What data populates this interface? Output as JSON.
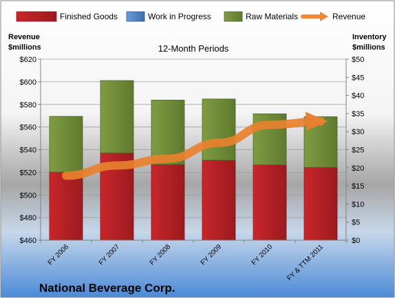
{
  "chart_data": {
    "type": "bar",
    "title": "12-Month Periods",
    "footer_title": "National Beverage Corp.",
    "left_axis_label": [
      "Revenue",
      "$millions"
    ],
    "right_axis_label": [
      "Inventory",
      "$millions"
    ],
    "categories": [
      "FY 2006",
      "FY 2007",
      "FY 2008",
      "FY 2009",
      "FY 2010",
      "FY & TTM 2011"
    ],
    "left_ylim": [
      460,
      620
    ],
    "left_ticks": [
      460,
      480,
      500,
      520,
      540,
      560,
      580,
      600,
      620
    ],
    "left_tick_labels": [
      "$460",
      "$480",
      "$500",
      "$520",
      "$540",
      "$560",
      "$580",
      "$600",
      "$620"
    ],
    "right_ylim": [
      0,
      50
    ],
    "right_ticks": [
      0,
      5,
      10,
      15,
      20,
      25,
      30,
      35,
      40,
      45,
      50
    ],
    "right_tick_labels": [
      "$0",
      "$5",
      "$10",
      "$15",
      "$20",
      "$25",
      "$30",
      "$35",
      "$40",
      "$45",
      "$50"
    ],
    "grid": true,
    "legend_position": "top",
    "series": [
      {
        "name": "Finished Goods",
        "kind": "stacked-bar",
        "axis": "right",
        "color": "#c0272d",
        "values": [
          18.8,
          24.1,
          20.9,
          22.1,
          20.8,
          20.1
        ]
      },
      {
        "name": "Work in Progress",
        "kind": "stacked-bar",
        "axis": "right",
        "color": "#4f81bd",
        "values": [
          0,
          0,
          0,
          0,
          0,
          0
        ]
      },
      {
        "name": "Raw Materials",
        "kind": "stacked-bar",
        "axis": "right",
        "color": "#77933c",
        "values": [
          15.4,
          20.0,
          17.8,
          16.9,
          14.1,
          14.0
        ]
      },
      {
        "name": "Revenue",
        "kind": "line",
        "axis": "left",
        "color": "#f0883a",
        "values": [
          517,
          526,
          532,
          546,
          562,
          565
        ]
      }
    ]
  }
}
